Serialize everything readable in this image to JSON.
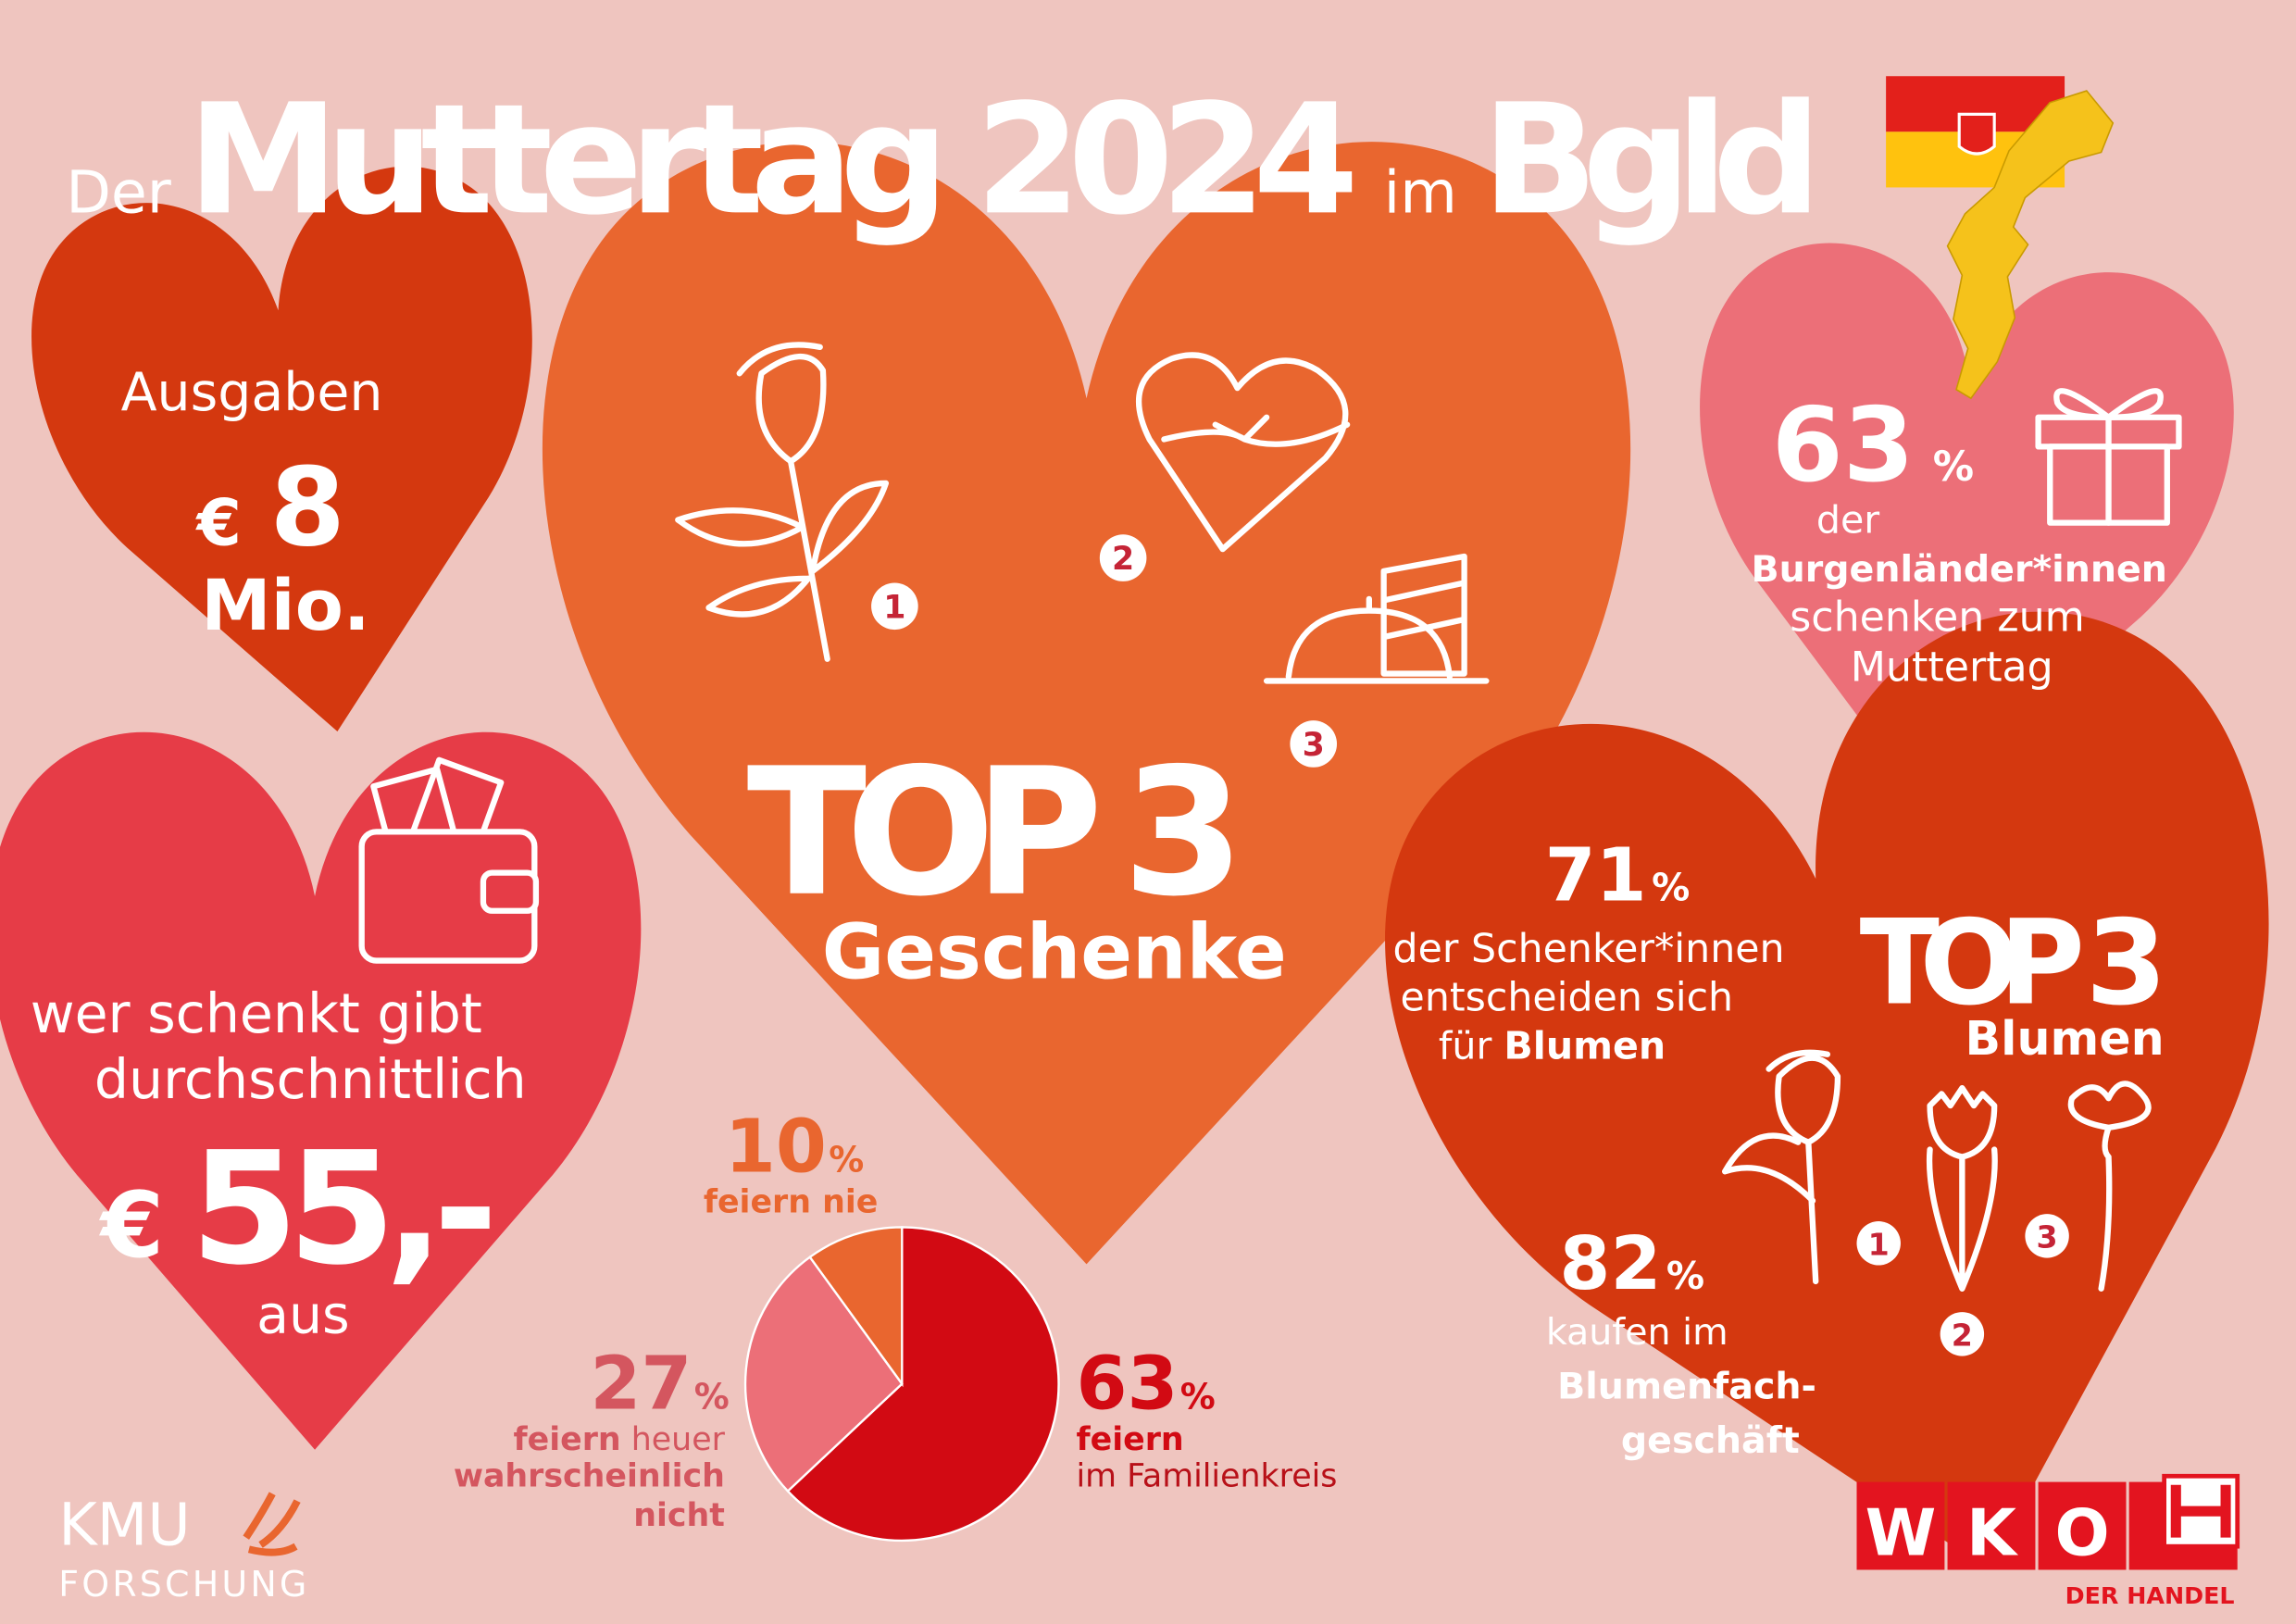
{
  "title": {
    "prefix": "Der",
    "main": "Muttertag 2024",
    "mid": "im",
    "region": "Bgld"
  },
  "colors": {
    "background": "#EFC5BF",
    "dark_red": "#D4380F",
    "orange": "#E9662F",
    "pink": "#EC6F78",
    "red": "#E63C47",
    "pie_red": "#D20A13"
  },
  "ausgaben": {
    "label": "Ausgaben",
    "currency": "€",
    "value": "8",
    "unit": "Mio."
  },
  "schenken": {
    "line1": "wer schenkt gibt",
    "line2": "durchschnittlich",
    "currency": "€",
    "value": "55,-",
    "suffix": "aus"
  },
  "geschenke": {
    "top": "TOP 3",
    "label": "Geschenke",
    "ranks": [
      "1",
      "2",
      "3"
    ],
    "icons": [
      "rose-icon",
      "heart-gift-box-icon",
      "food-dome-icon"
    ]
  },
  "gift_share": {
    "value": "63",
    "pct": "%",
    "line1": "der",
    "line2": "Burgenländer*innen",
    "line3": "schenken zum",
    "line4": "Muttertag"
  },
  "blumen": {
    "pct71": "71",
    "pct": "%",
    "line1": "der Schenker*innen",
    "line2": "entscheiden sich",
    "line3a": "für ",
    "line3b": "Blumen",
    "top": "TOP 3",
    "label": "Blumen",
    "ranks": [
      "1",
      "2",
      "3"
    ],
    "pct82": "82",
    "buy1": "kaufen im",
    "buy2": "Blumenfach-",
    "buy3": "geschäft"
  },
  "chart_data": {
    "type": "pie",
    "slices": [
      {
        "label": "feiern im Familienkreis",
        "value": 63,
        "color": "#D20A13"
      },
      {
        "label": "feiern heuer wahrscheinlich nicht",
        "value": 27,
        "color": "#EC6F78"
      },
      {
        "label": "feiern nie",
        "value": 10,
        "color": "#E9662F"
      }
    ]
  },
  "pie_labels": {
    "nie_value": "10",
    "nie_text": "feiern nie",
    "nicht_value": "27",
    "nicht_a": "feiern",
    "nicht_b": " heuer",
    "nicht_c": "wahrscheinlich",
    "nicht_d": "nicht",
    "fam_value": "63",
    "fam_a": "feiern",
    "fam_b": "im Familienkreis",
    "pct": "%"
  },
  "logos": {
    "kmu": "KMU",
    "forschung": "FORSCHUNG",
    "wko": [
      "W",
      "K",
      "O"
    ],
    "handel": "DER HANDEL"
  }
}
